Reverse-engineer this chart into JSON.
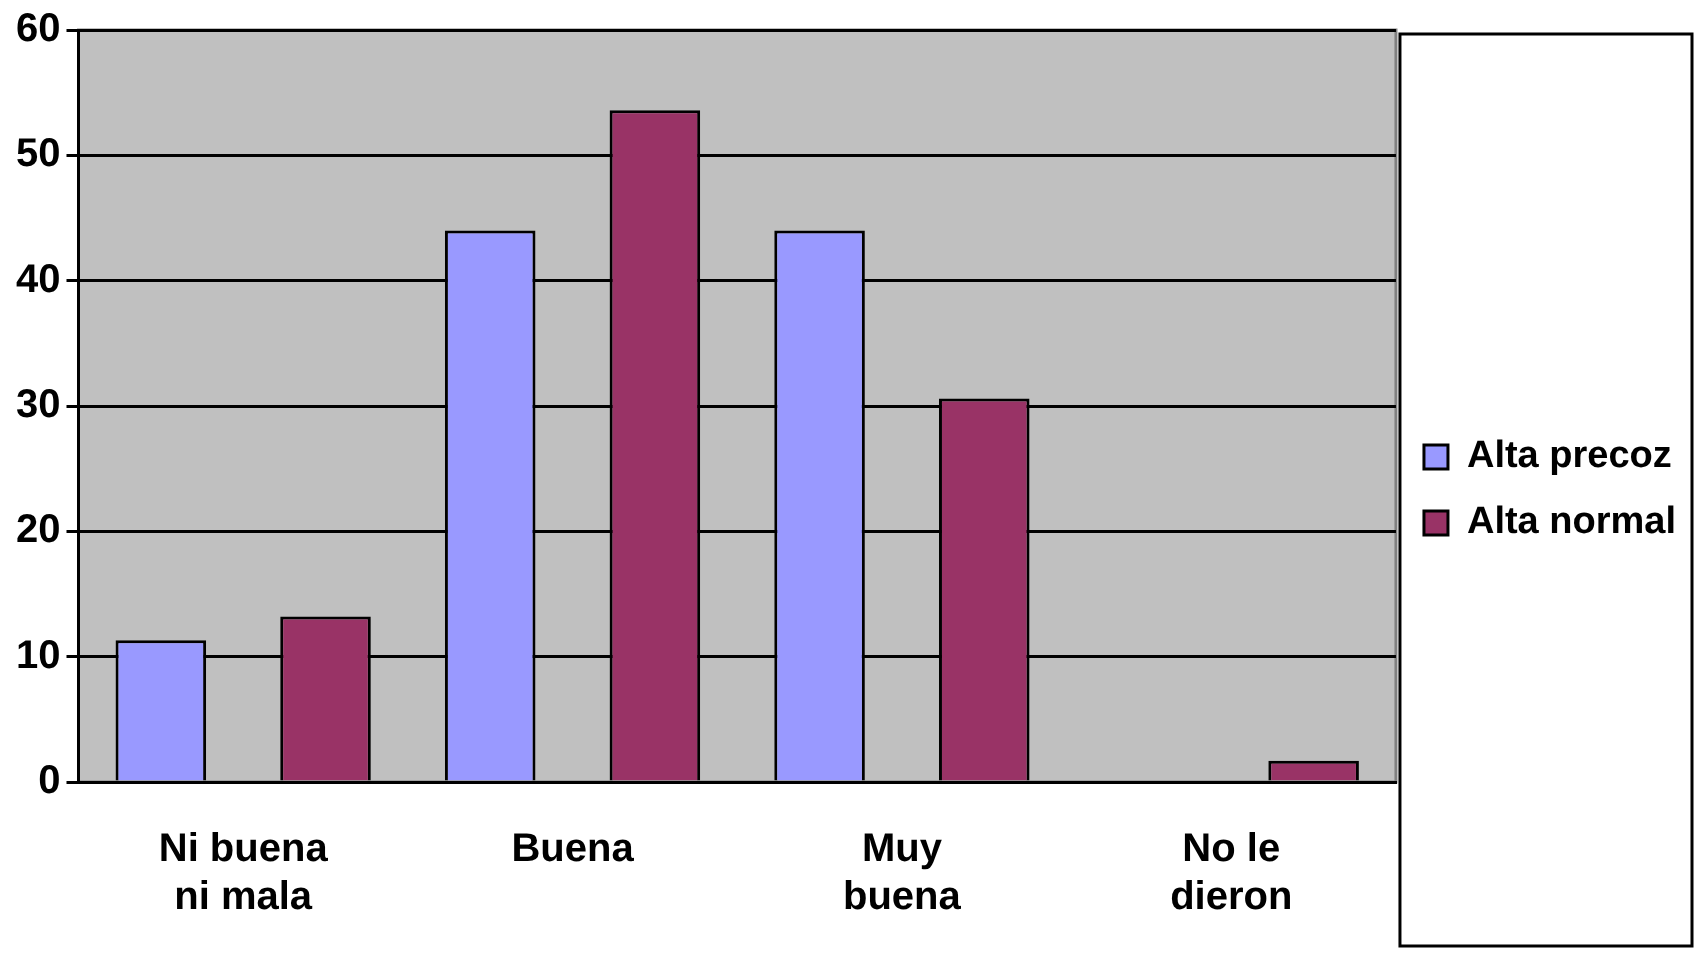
{
  "chart_data": {
    "type": "bar",
    "categories": [
      "Ni buena ni mala",
      "Buena",
      "Muy buena",
      "No le dieron"
    ],
    "series": [
      {
        "name": "Alta precoz",
        "color": "#9999ff",
        "values": [
          11.3,
          44,
          44,
          0
        ]
      },
      {
        "name": "Alta normal",
        "color": "#993366",
        "values": [
          13.2,
          53.6,
          30.6,
          1.7
        ]
      }
    ],
    "ylim": [
      0,
      60
    ],
    "yticks": [
      0,
      10,
      20,
      30,
      40,
      50,
      60
    ],
    "grid": "y",
    "legend": "right"
  }
}
